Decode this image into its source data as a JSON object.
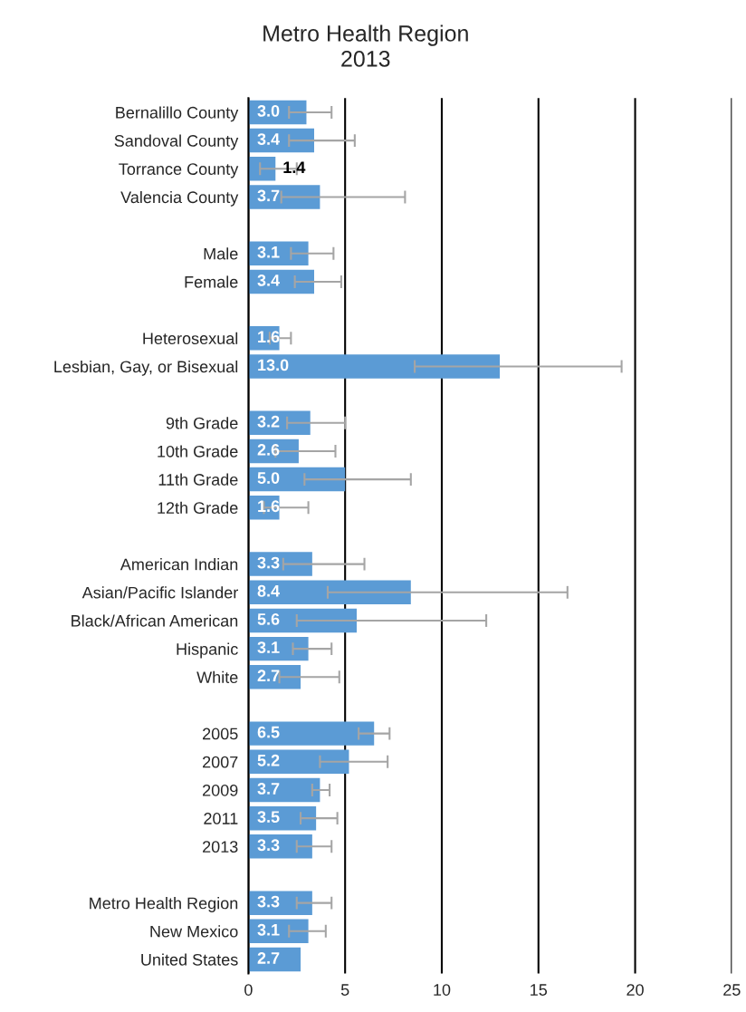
{
  "chart_data": {
    "type": "bar",
    "orientation": "horizontal",
    "title": "Metro Health Region",
    "subtitle": "2013",
    "categories": [
      "Bernalillo County",
      "Sandoval County",
      "Torrance County",
      "Valencia County",
      null,
      "Male",
      "Female",
      null,
      "Heterosexual",
      "Lesbian, Gay, or Bisexual",
      null,
      "9th Grade",
      "10th Grade",
      "11th Grade",
      "12th Grade",
      null,
      "American Indian",
      "Asian/Pacific Islander",
      "Black/African American",
      "Hispanic",
      "White",
      null,
      "2005",
      "2007",
      "2009",
      "2011",
      "2013",
      null,
      "Metro Health Region",
      "New Mexico",
      "United States"
    ],
    "values": [
      3.0,
      3.4,
      1.4,
      3.7,
      null,
      3.1,
      3.4,
      null,
      1.6,
      13.0,
      null,
      3.2,
      2.6,
      5.0,
      1.6,
      null,
      3.3,
      8.4,
      5.6,
      3.1,
      2.7,
      null,
      6.5,
      5.2,
      3.7,
      3.5,
      3.3,
      null,
      3.3,
      3.1,
      2.7
    ],
    "errors": [
      [
        2.1,
        4.3
      ],
      [
        2.1,
        5.5
      ],
      [
        0.6,
        2.5
      ],
      [
        1.7,
        8.1
      ],
      null,
      [
        2.2,
        4.4
      ],
      [
        2.4,
        4.8
      ],
      null,
      [
        1.1,
        2.2
      ],
      [
        8.6,
        19.3
      ],
      null,
      [
        2.0,
        5.0
      ],
      [
        1.4,
        4.5
      ],
      [
        2.9,
        8.4
      ],
      [
        0.8,
        3.1
      ],
      null,
      [
        1.8,
        6.0
      ],
      [
        4.1,
        16.5
      ],
      [
        2.5,
        12.3
      ],
      [
        2.3,
        4.3
      ],
      [
        1.6,
        4.7
      ],
      null,
      [
        5.7,
        7.3
      ],
      [
        3.7,
        7.2
      ],
      [
        3.3,
        4.2
      ],
      [
        2.7,
        4.6
      ],
      [
        2.5,
        4.3
      ],
      null,
      [
        2.5,
        4.3
      ],
      [
        2.1,
        4.0
      ],
      null
    ],
    "value_labels": [
      "3.0",
      "3.4",
      "1.4",
      "3.7",
      null,
      "3.1",
      "3.4",
      null,
      "1.6",
      "13.0",
      null,
      "3.2",
      "2.6",
      "5.0",
      "1.6",
      null,
      "3.3",
      "8.4",
      "5.6",
      "3.1",
      "2.7",
      null,
      "6.5",
      "5.2",
      "3.7",
      "3.5",
      "3.3",
      null,
      "3.3",
      "3.1",
      "2.7"
    ],
    "color": "#5b9bd5",
    "xlim": [
      0,
      25
    ],
    "xticks": [
      0,
      5,
      10,
      15,
      20,
      25
    ],
    "grid": "x",
    "legend": false
  }
}
